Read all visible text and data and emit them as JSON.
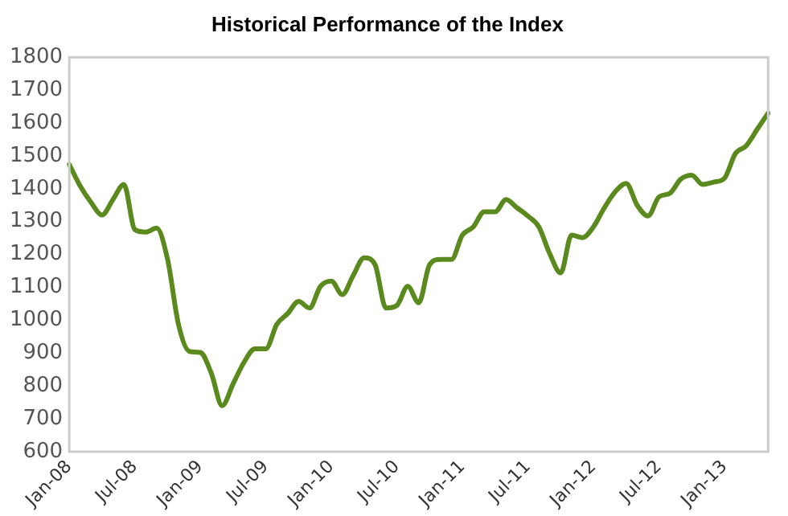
{
  "chart_data": {
    "type": "line",
    "title": "Historical Performance of the Index",
    "categories": [
      "Jan-08",
      null,
      null,
      null,
      null,
      null,
      "Jul-08",
      null,
      null,
      null,
      null,
      null,
      "Jan-09",
      null,
      null,
      null,
      null,
      null,
      "Jul-09",
      null,
      null,
      null,
      null,
      null,
      "Jan-10",
      null,
      null,
      null,
      null,
      null,
      "Jul-10",
      null,
      null,
      null,
      null,
      null,
      "Jan-11",
      null,
      null,
      null,
      null,
      null,
      "Jul-11",
      null,
      null,
      null,
      null,
      null,
      "Jan-12",
      null,
      null,
      null,
      null,
      null,
      "Jul-12",
      null,
      null,
      null,
      null,
      null,
      "Jan-13",
      null,
      null,
      null,
      null
    ],
    "series": [
      {
        "color": "#5a8a1e",
        "values": [
          1474,
          1408,
          1358,
          1320,
          1367,
          1413,
          1276,
          1268,
          1280,
          1185,
          987,
          905,
          902,
          839,
          740,
          806,
          872,
          913,
          913,
          987,
          1020,
          1057,
          1037,
          1103,
          1119,
          1078,
          1136,
          1190,
          1169,
          1037,
          1045,
          1103,
          1053,
          1169,
          1185,
          1185,
          1259,
          1284,
          1330,
          1330,
          1367,
          1342,
          1317,
          1284,
          1202,
          1144,
          1259,
          1251,
          1284,
          1342,
          1391,
          1416,
          1350,
          1317,
          1375,
          1386,
          1429,
          1441,
          1413,
          1420,
          1432,
          1507,
          1531,
          1581,
          1630
        ]
      }
    ],
    "ylim": [
      600,
      1800
    ],
    "yticks": [
      600,
      700,
      800,
      900,
      1000,
      1100,
      1200,
      1300,
      1400,
      1500,
      1600,
      1700,
      1800
    ],
    "grid": false,
    "legend": false,
    "marker": "none",
    "line_style": "solid"
  }
}
